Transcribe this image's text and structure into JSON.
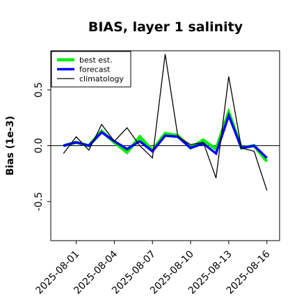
{
  "chart_data": {
    "type": "line",
    "title": "BIAS, layer 1 salinity",
    "xlabel": "",
    "ylabel": "Bias (1e-3)",
    "ylim": [
      -0.85,
      0.85
    ],
    "yticks": [
      -0.5,
      0.0,
      0.5
    ],
    "ytick_labels": [
      "-0.5",
      "0.0",
      "0.5"
    ],
    "xlim": [
      "2025-07-30",
      "2025-08-17"
    ],
    "xticks": [
      "2025-08-01",
      "2025-08-04",
      "2025-08-07",
      "2025-08-10",
      "2025-08-13",
      "2025-08-16"
    ],
    "xtick_labels": [
      "2025-08-01",
      "2025-08-04",
      "2025-08-07",
      "2025-08-10",
      "2025-08-13",
      "2025-08-16"
    ],
    "xtick_highlight": "2025-08-07",
    "xtick_highlight_color": "#2a8a2a",
    "reference_line": 0.0,
    "legend_position": "top-left",
    "series": [
      {
        "name": "best est.",
        "color": "#00ee00",
        "x": [
          "2025-07-31",
          "2025-08-01",
          "2025-08-02",
          "2025-08-03",
          "2025-08-04",
          "2025-08-05",
          "2025-08-06",
          "2025-08-07",
          "2025-08-08",
          "2025-08-09",
          "2025-08-10",
          "2025-08-11",
          "2025-08-12",
          "2025-08-13",
          "2025-08-14",
          "2025-08-15",
          "2025-08-16"
        ],
        "values": [
          0.0,
          0.03,
          0.0,
          0.13,
          0.03,
          -0.06,
          0.08,
          -0.04,
          0.11,
          0.09,
          -0.02,
          0.05,
          -0.03,
          0.3,
          -0.02,
          0.0,
          -0.14
        ]
      },
      {
        "name": "forecast",
        "color": "#0000ff",
        "x": [
          "2025-07-31",
          "2025-08-01",
          "2025-08-02",
          "2025-08-03",
          "2025-08-04",
          "2025-08-05",
          "2025-08-06",
          "2025-08-07",
          "2025-08-08",
          "2025-08-09",
          "2025-08-10",
          "2025-08-11",
          "2025-08-12",
          "2025-08-13",
          "2025-08-14",
          "2025-08-15",
          "2025-08-16"
        ],
        "values": [
          0.0,
          0.03,
          0.0,
          0.12,
          0.04,
          -0.03,
          0.04,
          -0.05,
          0.09,
          0.08,
          -0.02,
          0.02,
          -0.07,
          0.27,
          -0.02,
          0.0,
          -0.11
        ]
      },
      {
        "name": "climatology",
        "color": "#000000",
        "x": [
          "2025-07-31",
          "2025-08-01",
          "2025-08-02",
          "2025-08-03",
          "2025-08-04",
          "2025-08-05",
          "2025-08-06",
          "2025-08-07",
          "2025-08-08",
          "2025-08-09",
          "2025-08-10",
          "2025-08-11",
          "2025-08-12",
          "2025-08-13",
          "2025-08-14",
          "2025-08-15",
          "2025-08-16"
        ],
        "values": [
          -0.07,
          0.08,
          -0.04,
          0.19,
          0.04,
          0.16,
          0.0,
          -0.11,
          0.82,
          0.08,
          0.01,
          0.03,
          -0.29,
          0.62,
          -0.02,
          -0.05,
          -0.4
        ]
      }
    ]
  }
}
